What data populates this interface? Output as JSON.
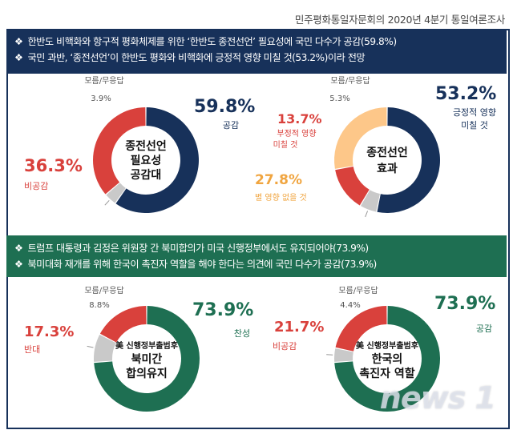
{
  "source": "민주평화통일자문회의 2020년 4분기 통일여론조사",
  "colors": {
    "navy": "#17315a",
    "red": "#d9413c",
    "gray": "#c9c9c9",
    "peach": "#fdc789",
    "green": "#1e6f52"
  },
  "banners": {
    "top": [
      "한반도 비핵화와 항구적 평화체제를 위한 ‘한반도 종전선언’ 필요성에 국민 다수가 공감(59.8%)",
      "국민 과반, ‘종전선언’이 한반도 평화와 비핵화에 긍정적 영향 미칠 것(53.2%)이라 전망"
    ],
    "bottom": [
      "트럼프 대통령과 김정은 위원장 간 북미합의가 미국 신행정부에서도 유지되어야(73.9%)",
      "북미대화 재개를 위해 한국이 촉진자 역할을 해야 한다는 의견에 국민 다수가 공감(73.9%)"
    ]
  },
  "chart_data": [
    {
      "type": "pie",
      "title": "종전선언 필요성 공감대",
      "center_lines": [
        "종전선언",
        "필요성",
        "공감대"
      ],
      "slices": [
        {
          "label": "공감",
          "value": 59.8,
          "pct": "59.8%",
          "color": "#17315a"
        },
        {
          "label": "모름/무응답",
          "value": 3.9,
          "pct": "3.9%",
          "color": "#c9c9c9"
        },
        {
          "label": "비공감",
          "value": 36.3,
          "pct": "36.3%",
          "color": "#d9413c"
        }
      ]
    },
    {
      "type": "pie",
      "title": "종전선언 효과",
      "center_lines": [
        "종전선언",
        "효과"
      ],
      "slices": [
        {
          "label": "긍정적 영향 미칠 것",
          "value": 53.2,
          "pct": "53.2%",
          "color": "#17315a"
        },
        {
          "label": "모름/무응답",
          "value": 5.3,
          "pct": "5.3%",
          "color": "#c9c9c9"
        },
        {
          "label": "부정적 영향 미칠 것",
          "value": 13.7,
          "pct": "13.7%",
          "color": "#d9413c"
        },
        {
          "label": "별 영향 없을 것",
          "value": 27.8,
          "pct": "27.8%",
          "color": "#fdc789"
        }
      ]
    },
    {
      "type": "pie",
      "title": "美 신행정부 출범후 북미간 합의유지",
      "center_lines": [
        "美 신행정부출범후",
        "북미간",
        "합의유지"
      ],
      "slices": [
        {
          "label": "찬성",
          "value": 73.9,
          "pct": "73.9%",
          "color": "#1e6f52"
        },
        {
          "label": "모름/무응답",
          "value": 8.8,
          "pct": "8.8%",
          "color": "#c9c9c9"
        },
        {
          "label": "반대",
          "value": 17.3,
          "pct": "17.3%",
          "color": "#d9413c"
        }
      ]
    },
    {
      "type": "pie",
      "title": "美 신행정부 출범후 한국의 촉진자 역할",
      "center_lines": [
        "美 신행정부출범후",
        "한국의",
        "촉진자 역할"
      ],
      "slices": [
        {
          "label": "공감",
          "value": 73.9,
          "pct": "73.9%",
          "color": "#1e6f52"
        },
        {
          "label": "모름/무응답",
          "value": 4.4,
          "pct": "4.4%",
          "color": "#c9c9c9"
        },
        {
          "label": "비공감",
          "value": 21.7,
          "pct": "21.7%",
          "color": "#d9413c"
        }
      ]
    }
  ],
  "watermark": "news 1"
}
